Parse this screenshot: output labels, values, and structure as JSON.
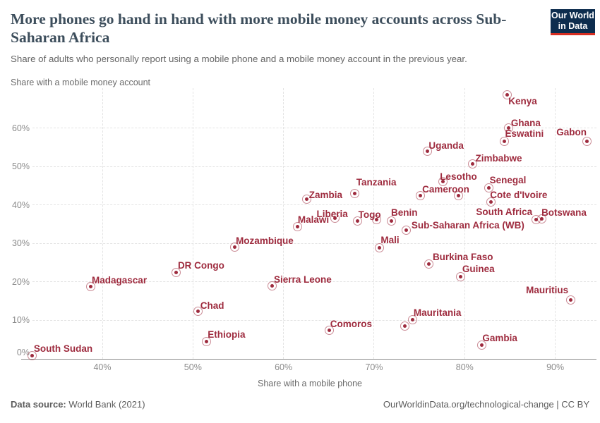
{
  "header": {
    "title": "More phones go hand in hand with more mobile money accounts across Sub-Saharan Africa",
    "subtitle": "Share of adults who personally report using a mobile phone and a mobile money account in the previous year.",
    "logo": {
      "line1": "Our World",
      "line2": "in Data"
    }
  },
  "chart_data": {
    "type": "scatter",
    "title": "More phones go hand in hand with more mobile money accounts across Sub-Saharan Africa",
    "subtitle": "Share of adults who personally report using a mobile phone and a mobile money account in the previous year.",
    "xlabel": "Share with a mobile phone",
    "ylabel": "Share with a mobile money account",
    "x_ticks": [
      40,
      50,
      60,
      70,
      80,
      90
    ],
    "y_ticks": [
      0,
      10,
      20,
      30,
      40,
      50,
      60
    ],
    "xlim": [
      31,
      94.6
    ],
    "ylim": [
      0,
      70.5
    ],
    "grid": true,
    "tick_format": "percent",
    "points": [
      {
        "name": "Kenya",
        "x": 84.6,
        "y": 68.9,
        "lp": [
          3,
          4
        ]
      },
      {
        "name": "Ghana",
        "x": 84.8,
        "y": 60.2,
        "lp": [
          4,
          -13
        ]
      },
      {
        "name": "Eswatini",
        "x": 84.3,
        "y": 56.8,
        "lp": [
          2,
          -16
        ]
      },
      {
        "name": "Gabon",
        "x": 93.4,
        "y": 56.8,
        "lp": [
          -42,
          -18
        ]
      },
      {
        "name": "Uganda",
        "x": 75.8,
        "y": 54.1,
        "lp": [
          3,
          -14
        ]
      },
      {
        "name": "Zimbabwe",
        "x": 80.8,
        "y": 50.8,
        "lp": [
          5,
          -14
        ]
      },
      {
        "name": "Lesotho",
        "x": 77.5,
        "y": 46.3,
        "lp": [
          -3,
          -12
        ]
      },
      {
        "name": "Senegal",
        "x": 82.6,
        "y": 44.7,
        "lp": [
          2,
          -16
        ]
      },
      {
        "name": "Tanzania",
        "x": 67.8,
        "y": 43.2,
        "lp": [
          3,
          -21
        ]
      },
      {
        "name": "Cameroon",
        "x": 75.0,
        "y": 42.6,
        "lp": [
          4,
          -15
        ]
      },
      {
        "name": "",
        "x": 79.2,
        "y": 42.7
      },
      {
        "name": "Zambia",
        "x": 62.5,
        "y": 41.7,
        "lp": [
          4,
          -12
        ]
      },
      {
        "name": "Cote d'Ivoire",
        "x": 82.8,
        "y": 40.9,
        "lp": [
          0,
          -16
        ]
      },
      {
        "name": "South Africa",
        "x": 87.8,
        "y": 36.4,
        "lp": [
          -84,
          -16
        ]
      },
      {
        "name": "Botswana",
        "x": 88.4,
        "y": 36.5,
        "lp": [
          1,
          -15
        ]
      },
      {
        "name": "Liberia",
        "x": 65.6,
        "y": 36.8,
        "lp": [
          -25,
          -11
        ]
      },
      {
        "name": "Togo",
        "x": 68.1,
        "y": 36.0,
        "lp": [
          2,
          -15
        ]
      },
      {
        "name": "",
        "x": 70.2,
        "y": 36.3
      },
      {
        "name": "Benin",
        "x": 71.8,
        "y": 36.1,
        "lp": [
          1,
          -17
        ]
      },
      {
        "name": "Malawi",
        "x": 61.5,
        "y": 34.6,
        "lp": [
          1,
          -15
        ]
      },
      {
        "name": "Sub-Saharan Africa (WB)",
        "x": 73.5,
        "y": 33.6,
        "lp": [
          8,
          -13
        ]
      },
      {
        "name": "Mozambique",
        "x": 54.5,
        "y": 29.3,
        "lp": [
          3,
          -14
        ]
      },
      {
        "name": "Mali",
        "x": 70.5,
        "y": 29.1,
        "lp": [
          3,
          -16
        ]
      },
      {
        "name": "Burkina Faso",
        "x": 76.0,
        "y": 24.9,
        "lp": [
          6,
          -15
        ]
      },
      {
        "name": "DR Congo",
        "x": 48.1,
        "y": 22.7,
        "lp": [
          3,
          -15
        ]
      },
      {
        "name": "Guinea",
        "x": 79.5,
        "y": 21.6,
        "lp": [
          3,
          -16
        ]
      },
      {
        "name": "Sierra Leone",
        "x": 58.7,
        "y": 19.1,
        "lp": [
          3,
          -15
        ]
      },
      {
        "name": "Madagascar",
        "x": 38.6,
        "y": 18.9,
        "lp": [
          3,
          -15
        ]
      },
      {
        "name": "Mauritius",
        "x": 91.6,
        "y": 15.5,
        "lp": [
          -62,
          -19
        ]
      },
      {
        "name": "Chad",
        "x": 50.5,
        "y": 12.5,
        "lp": [
          4,
          -14
        ]
      },
      {
        "name": "Mauritania",
        "x": 74.2,
        "y": 10.3,
        "lp": [
          2,
          -16
        ]
      },
      {
        "name": "",
        "x": 73.3,
        "y": 8.7
      },
      {
        "name": "Comoros",
        "x": 65.0,
        "y": 7.6,
        "lp": [
          2,
          -15
        ]
      },
      {
        "name": "Ethiopia",
        "x": 51.4,
        "y": 4.7,
        "lp": [
          3,
          -15
        ]
      },
      {
        "name": "Gambia",
        "x": 81.8,
        "y": 3.8,
        "lp": [
          2,
          -15
        ]
      },
      {
        "name": "South Sudan",
        "x": 32.2,
        "y": 1.0,
        "lp": [
          3,
          -16
        ]
      }
    ]
  },
  "footer": {
    "source_label": "Data source:",
    "source_value": "World Bank (2021)",
    "right": "OurWorldinData.org/technological-change | CC BY"
  },
  "colors": {
    "accent": "#9e2b3e",
    "accent_ring": "rgba(158,43,62,0.55)",
    "grid": "#e3e3e3",
    "axis": "#8a8a8a",
    "tick": "#8b8b8b",
    "axis_title": "#6b6b6b",
    "title": "#3d4e5c",
    "subtitle": "#646464",
    "logo_navy": "#0d2d4e",
    "logo_red": "#d62e22",
    "footer": "#5d5d5d"
  }
}
